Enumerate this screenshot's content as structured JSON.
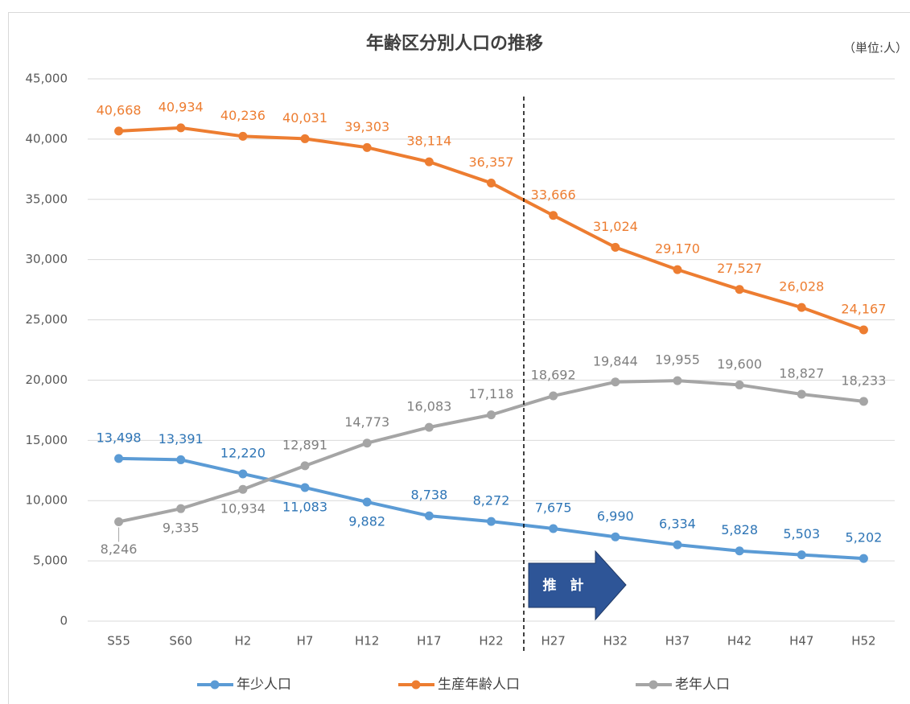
{
  "chart_data": {
    "type": "line",
    "title": "年齢区分別人口の推移",
    "unit_label": "（単位:人）",
    "annotation": "推　計",
    "categories": [
      "S55",
      "S60",
      "H2",
      "H7",
      "H12",
      "H17",
      "H22",
      "H27",
      "H32",
      "H37",
      "H42",
      "H47",
      "H52"
    ],
    "series": [
      {
        "name": "年少人口",
        "color": "#5b9bd5",
        "values": [
          13498,
          13391,
          12220,
          11083,
          9882,
          8738,
          8272,
          7675,
          6990,
          6334,
          5828,
          5503,
          5202
        ],
        "value_labels": [
          "13,498",
          "13,391",
          "12,220",
          "11,083",
          "9,882",
          "8,738",
          "8,272",
          "7,675",
          "6,990",
          "6,334",
          "5,828",
          "5,503",
          "5,202"
        ]
      },
      {
        "name": "生産年齢人口",
        "color": "#ed7d31",
        "values": [
          40668,
          40934,
          40236,
          40031,
          39303,
          38114,
          36357,
          33666,
          31024,
          29170,
          27527,
          26028,
          24167
        ],
        "value_labels": [
          "40,668",
          "40,934",
          "40,236",
          "40,031",
          "39,303",
          "38,114",
          "36,357",
          "33,666",
          "31,024",
          "29,170",
          "27,527",
          "26,028",
          "24,167"
        ]
      },
      {
        "name": "老年人口",
        "color": "#a5a5a5",
        "values": [
          8246,
          9335,
          10934,
          12891,
          14773,
          16083,
          17118,
          18692,
          19844,
          19955,
          19600,
          18827,
          18233
        ],
        "value_labels": [
          "8,246",
          "9,335",
          "10,934",
          "12,891",
          "14,773",
          "16,083",
          "17,118",
          "18,692",
          "19,844",
          "19,955",
          "19,600",
          "18,827",
          "18,233"
        ]
      }
    ],
    "ylim": [
      0,
      45000
    ],
    "yticks": [
      0,
      {
        "value": 5000,
        "label": "5,000"
      },
      {
        "value": 10000,
        "label": "10,000"
      },
      {
        "value": 15000,
        "label": "15,000"
      },
      {
        "value": 20000,
        "label": "20,000"
      },
      {
        "value": 25000,
        "label": "25,000"
      },
      {
        "value": 30000,
        "label": "30,000"
      },
      {
        "value": 35000,
        "label": "35,000"
      },
      {
        "value": 40000,
        "label": "40,000"
      },
      {
        "value": 45000,
        "label": "45,000"
      }
    ],
    "grid": true,
    "legend": "bottom"
  }
}
